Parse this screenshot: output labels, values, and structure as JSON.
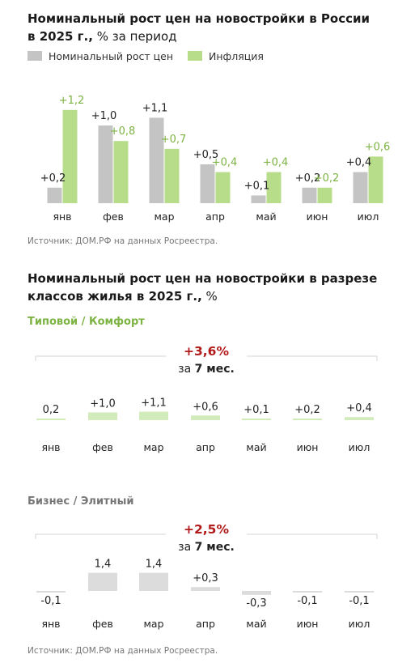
{
  "chart1": {
    "title_bold": "Номинальный рост цен на новостройки в России в 2025 г.,",
    "title_normal": " % за период",
    "legend": [
      {
        "name": "Номинальный рост цен",
        "color": "#c4c4c4"
      },
      {
        "name": "Инфляция",
        "color": "#b7dc8a"
      }
    ],
    "source": "Источник: ДОМ.РФ на данных Росреестра."
  },
  "chart2": {
    "title_bold": "Номинальный рост цен на новостройки в разрезе классов жилья в 2025 г.,",
    "title_normal": " %",
    "source": "Источник: ДОМ.РФ на данных Росреестра."
  },
  "colors": {
    "grey_bar": "#c4c4c4",
    "green_bar": "#b7dc8a",
    "green_text": "#7cb342",
    "light_green": "#d1ebbb",
    "light_grey": "#dcdcdc",
    "total_red": "#b31b1b",
    "bracket": "#d5d5d5"
  },
  "chart_data": [
    {
      "type": "bar",
      "categories": [
        "янв",
        "фев",
        "мар",
        "апр",
        "май",
        "июн",
        "июл"
      ],
      "series": [
        {
          "name": "Номинальный рост цен",
          "values": [
            0.2,
            1.0,
            1.1,
            0.5,
            0.1,
            0.2,
            0.4
          ],
          "labels": [
            "+0,2",
            "+1,0",
            "+1,1",
            "+0,5",
            "+0,1",
            "+0,2",
            "+0,4"
          ]
        },
        {
          "name": "Инфляция",
          "values": [
            1.2,
            0.8,
            0.7,
            0.4,
            0.4,
            0.2,
            0.6
          ],
          "labels": [
            "+1,2",
            "+0,8",
            "+0,7",
            "+0,4",
            "+0,4",
            "+0,2",
            "+0,6"
          ]
        }
      ],
      "ylim": [
        0,
        1.3
      ]
    },
    {
      "type": "bar",
      "subtitle": "Типовой / Комфорт",
      "subtitle_color": "#7cb342",
      "total_value": "+3,6%",
      "total_prefix": "за ",
      "total_period": "7 мес.",
      "categories": [
        "янв",
        "фев",
        "мар",
        "апр",
        "май",
        "июн",
        "июл"
      ],
      "values": [
        0.2,
        1.0,
        1.1,
        0.6,
        0.1,
        0.2,
        0.4
      ],
      "labels": [
        "0,2",
        "+1,0",
        "+1,1",
        "+0,6",
        "+0,1",
        "+0,2",
        "+0,4"
      ]
    },
    {
      "type": "bar",
      "subtitle": "Бизнес / Элитный",
      "subtitle_color": "#777777",
      "total_value": "+2,5%",
      "total_prefix": "за ",
      "total_period": "7 мес.",
      "categories": [
        "янв",
        "фев",
        "мар",
        "апр",
        "май",
        "июн",
        "июл"
      ],
      "values": [
        -0.1,
        1.4,
        1.4,
        0.3,
        -0.3,
        -0.1,
        -0.1
      ],
      "labels": [
        "-0,1",
        "1,4",
        "1,4",
        "+0,3",
        "-0,3",
        "-0,1",
        "-0,1"
      ]
    }
  ]
}
